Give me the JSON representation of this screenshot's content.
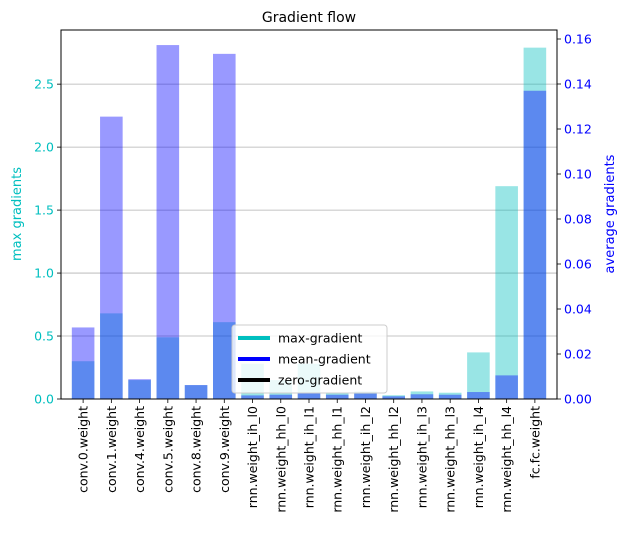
{
  "chart_data": {
    "type": "bar",
    "title": "Gradient flow",
    "ylabel_left": "max gradients",
    "ylabel_right": "average gradients",
    "categories": [
      "conv.0.weight",
      "conv.1.weight",
      "conv.4.weight",
      "conv.5.weight",
      "conv.8.weight",
      "conv.9.weight",
      "rnn.weight_ih_l0",
      "rnn.weight_hh_l0",
      "rnn.weight_ih_l1",
      "rnn.weight_hh_l1",
      "rnn.weight_ih_l2",
      "rnn.weight_hh_l2",
      "rnn.weight_ih_l3",
      "rnn.weight_hh_l3",
      "rnn.weight_ih_l4",
      "rnn.weight_hh_l4",
      "fc.fc.weight"
    ],
    "left_axis": {
      "ylim": [
        0,
        2.93
      ],
      "ticks": [
        0.0,
        0.5,
        1.0,
        1.5,
        2.0,
        2.5
      ],
      "tick_labels": [
        "0.0",
        "0.5",
        "1.0",
        "1.5",
        "2.0",
        "2.5"
      ],
      "color": "#00bfbf"
    },
    "right_axis": {
      "ylim": [
        0,
        0.164
      ],
      "ticks": [
        0.0,
        0.02,
        0.04,
        0.06,
        0.08,
        0.1,
        0.12,
        0.14,
        0.16
      ],
      "tick_labels": [
        "0.00",
        "0.02",
        "0.04",
        "0.06",
        "0.08",
        "0.10",
        "0.12",
        "0.14",
        "0.16"
      ],
      "color": "#0000ff"
    },
    "series": [
      {
        "name": "max-gradient",
        "axis": "left",
        "color": "#00bfbf",
        "values": [
          0.3,
          0.68,
          0.15,
          0.49,
          0.11,
          0.61,
          0.28,
          0.15,
          0.28,
          0.05,
          0.06,
          0.03,
          0.06,
          0.05,
          0.37,
          1.69,
          2.79
        ]
      },
      {
        "name": "mean-gradient",
        "axis": "right",
        "color": "#0000ff",
        "values": [
          0.0318,
          0.1255,
          0.0088,
          0.1573,
          0.0062,
          0.1534,
          0.0016,
          0.0019,
          0.0025,
          0.0019,
          0.0024,
          0.0012,
          0.0021,
          0.0019,
          0.0031,
          0.0105,
          0.137
        ]
      }
    ],
    "legend": {
      "position": "lower-center",
      "entries": [
        {
          "label": "max-gradient",
          "color": "#00bfbf"
        },
        {
          "label": "mean-gradient",
          "color": "#0000ff"
        },
        {
          "label": "zero-gradient",
          "color": "#000000"
        }
      ]
    },
    "grid": "horizontal"
  }
}
